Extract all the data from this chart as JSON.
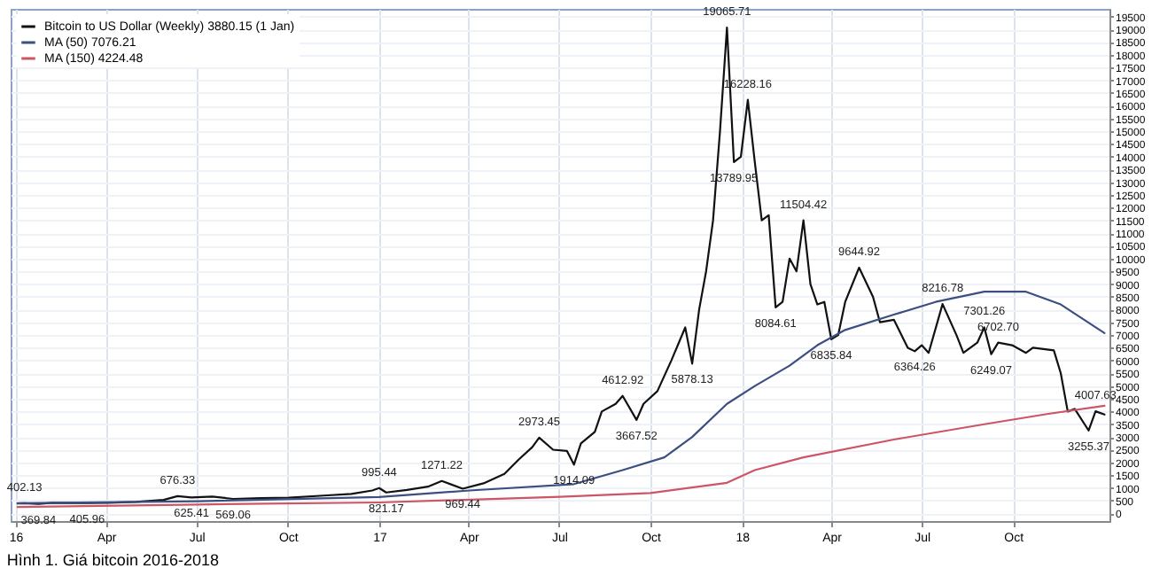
{
  "chart_data": {
    "type": "line",
    "legend": "top left",
    "grid": true,
    "line_style": "solid",
    "marker": "none",
    "xlim": [
      "2015-12-27",
      "2019-01-06"
    ],
    "xticks": [
      {
        "value": "2016-01-01",
        "label": "16"
      },
      {
        "value": "2016-04-01",
        "label": "Apr"
      },
      {
        "value": "2016-07-01",
        "label": "Jul"
      },
      {
        "value": "2016-10-01",
        "label": "Oct"
      },
      {
        "value": "2017-01-01",
        "label": "17"
      },
      {
        "value": "2017-04-01",
        "label": "Apr"
      },
      {
        "value": "2017-07-01",
        "label": "Jul"
      },
      {
        "value": "2017-10-01",
        "label": "Oct"
      },
      {
        "value": "2018-01-01",
        "label": "18"
      },
      {
        "value": "2018-04-01",
        "label": "Apr"
      },
      {
        "value": "2018-07-01",
        "label": "Jul"
      },
      {
        "value": "2018-10-01",
        "label": "Oct"
      }
    ],
    "ylim": [
      -300,
      19800
    ],
    "yticks": [
      0,
      500,
      1000,
      1500,
      2000,
      2500,
      3000,
      3500,
      4000,
      4500,
      5000,
      5500,
      6000,
      6500,
      7000,
      7500,
      8000,
      8500,
      9000,
      9500,
      10000,
      10500,
      11000,
      11500,
      12000,
      12500,
      13000,
      13500,
      14000,
      14500,
      15000,
      15500,
      16000,
      16500,
      17000,
      17500,
      18000,
      18500,
      19000,
      19500
    ],
    "series": [
      {
        "name": "Bitcoin to US Dollar (Weekly) 3880.15 (1 Jan)",
        "color": "#111111",
        "x": [
          "2016-01-03",
          "2016-01-10",
          "2016-01-24",
          "2016-02-07",
          "2016-03-13",
          "2016-04-03",
          "2016-05-01",
          "2016-05-29",
          "2016-06-12",
          "2016-06-26",
          "2016-07-17",
          "2016-08-07",
          "2016-09-04",
          "2016-10-02",
          "2016-11-06",
          "2016-12-04",
          "2016-12-25",
          "2017-01-01",
          "2017-01-08",
          "2017-01-29",
          "2017-02-19",
          "2017-03-05",
          "2017-03-26",
          "2017-04-16",
          "2017-05-07",
          "2017-05-21",
          "2017-06-04",
          "2017-06-11",
          "2017-06-25",
          "2017-07-09",
          "2017-07-16",
          "2017-07-23",
          "2017-08-06",
          "2017-08-13",
          "2017-08-27",
          "2017-09-03",
          "2017-09-17",
          "2017-09-24",
          "2017-10-08",
          "2017-10-22",
          "2017-11-05",
          "2017-11-12",
          "2017-11-19",
          "2017-11-26",
          "2017-12-03",
          "2017-12-10",
          "2017-12-17",
          "2017-12-24",
          "2017-12-31",
          "2018-01-07",
          "2018-01-14",
          "2018-01-21",
          "2018-01-28",
          "2018-02-04",
          "2018-02-11",
          "2018-02-18",
          "2018-02-25",
          "2018-03-04",
          "2018-03-11",
          "2018-03-18",
          "2018-03-25",
          "2018-04-01",
          "2018-04-08",
          "2018-04-15",
          "2018-04-29",
          "2018-05-13",
          "2018-05-20",
          "2018-06-03",
          "2018-06-17",
          "2018-06-24",
          "2018-07-01",
          "2018-07-08",
          "2018-07-22",
          "2018-08-05",
          "2018-08-12",
          "2018-08-26",
          "2018-09-02",
          "2018-09-09",
          "2018-09-16",
          "2018-09-30",
          "2018-10-14",
          "2018-10-21",
          "2018-11-11",
          "2018-11-18",
          "2018-11-25",
          "2018-12-02",
          "2018-12-16",
          "2018-12-23",
          "2019-01-01"
        ],
        "values": [
          390,
          402.13,
          369.84,
          420,
          405.96,
          420,
          450,
          530,
          676.33,
          625.41,
          660,
          569.06,
          600,
          615,
          700,
          765,
          900,
          995.44,
          821.17,
          920,
          1050,
          1271.22,
          969.44,
          1180,
          1550,
          2100,
          2600,
          2973.45,
          2500,
          2450,
          1914.09,
          2750,
          3200,
          4000,
          4300,
          4612.92,
          3667.52,
          4300,
          4800,
          6000,
          7300,
          5878.13,
          8000,
          9500,
          11500,
          15000,
          19065.71,
          13789.95,
          14000,
          16228.16,
          13800,
          11500,
          11700,
          8084.61,
          8300,
          10000,
          9500,
          11504.42,
          9000,
          8200,
          8300,
          6835.84,
          7000,
          8300,
          9644.92,
          8500,
          7500,
          7600,
          6500,
          6364.26,
          6600,
          6300,
          8216.78,
          7000,
          6300,
          6700,
          7301.26,
          6249.07,
          6702.7,
          6600,
          6300,
          6500,
          6400,
          5500,
          4000,
          4100,
          3255.37,
          4007.63,
          3880.15
        ]
      },
      {
        "name": "MA (50) 7076.21",
        "color": "#3d4f80",
        "x": [
          "2016-01-03",
          "2016-07-03",
          "2017-01-01",
          "2017-04-02",
          "2017-07-16",
          "2017-09-03",
          "2017-10-15",
          "2017-11-12",
          "2017-12-17",
          "2018-01-14",
          "2018-02-18",
          "2018-03-18",
          "2018-04-15",
          "2018-06-03",
          "2018-07-15",
          "2018-09-02",
          "2018-10-14",
          "2018-11-18",
          "2019-01-01"
        ],
        "values": [
          400,
          480,
          640,
          900,
          1150,
          1700,
          2200,
          3000,
          4300,
          5000,
          5800,
          6600,
          7200,
          7800,
          8300,
          8700,
          8700,
          8200,
          7076.21
        ]
      },
      {
        "name": "MA (150) 4224.48",
        "color": "#cc5566",
        "x": [
          "2016-01-03",
          "2016-07-03",
          "2017-01-01",
          "2017-07-02",
          "2017-10-01",
          "2017-12-17",
          "2018-01-14",
          "2018-03-04",
          "2018-06-03",
          "2018-09-02",
          "2018-11-04",
          "2019-01-01"
        ],
        "values": [
          250,
          350,
          430,
          650,
          800,
          1200,
          1700,
          2200,
          2900,
          3500,
          3900,
          4224.48
        ]
      }
    ],
    "annotations": [
      {
        "text": "402.13",
        "x": "2016-01-10",
        "y": 402.13
      },
      {
        "text": "369.84",
        "x": "2016-01-24",
        "y": 369.84
      },
      {
        "text": "405.96",
        "x": "2016-03-13",
        "y": 405.96
      },
      {
        "text": "676.33",
        "x": "2016-06-12",
        "y": 676.33
      },
      {
        "text": "625.41",
        "x": "2016-06-26",
        "y": 625.41
      },
      {
        "text": "569.06",
        "x": "2016-08-07",
        "y": 569.06
      },
      {
        "text": "995.44",
        "x": "2017-01-01",
        "y": 995.44
      },
      {
        "text": "821.17",
        "x": "2017-01-08",
        "y": 821.17
      },
      {
        "text": "1271.22",
        "x": "2017-03-05",
        "y": 1271.22
      },
      {
        "text": "969.44",
        "x": "2017-03-26",
        "y": 969.44
      },
      {
        "text": "2973.45",
        "x": "2017-06-11",
        "y": 2973.45
      },
      {
        "text": "1914.09",
        "x": "2017-07-16",
        "y": 1914.09
      },
      {
        "text": "4612.92",
        "x": "2017-09-03",
        "y": 4612.92
      },
      {
        "text": "3667.52",
        "x": "2017-09-17",
        "y": 3667.52
      },
      {
        "text": "5878.13",
        "x": "2017-11-12",
        "y": 5878.13
      },
      {
        "text": "19065.71",
        "x": "2017-12-17",
        "y": 19065.71
      },
      {
        "text": "13789.95",
        "x": "2017-12-24",
        "y": 13789.95
      },
      {
        "text": "16228.16",
        "x": "2018-01-07",
        "y": 16228.16
      },
      {
        "text": "8084.61",
        "x": "2018-02-04",
        "y": 8084.61
      },
      {
        "text": "11504.42",
        "x": "2018-03-04",
        "y": 11504.42
      },
      {
        "text": "6835.84",
        "x": "2018-04-01",
        "y": 6835.84
      },
      {
        "text": "9644.92",
        "x": "2018-04-29",
        "y": 9644.92
      },
      {
        "text": "6364.26",
        "x": "2018-06-24",
        "y": 6364.26
      },
      {
        "text": "8216.78",
        "x": "2018-07-22",
        "y": 8216.78
      },
      {
        "text": "7301.26",
        "x": "2018-09-02",
        "y": 7301.26
      },
      {
        "text": "6249.07",
        "x": "2018-09-09",
        "y": 6249.07
      },
      {
        "text": "6702.70",
        "x": "2018-09-16",
        "y": 6702.7
      },
      {
        "text": "3255.37",
        "x": "2018-12-16",
        "y": 3255.37
      },
      {
        "text": "4007.63",
        "x": "2018-12-23",
        "y": 4007.63
      },
      "Hình 1. Giá bitcoin 2016-2018"
    ]
  }
}
